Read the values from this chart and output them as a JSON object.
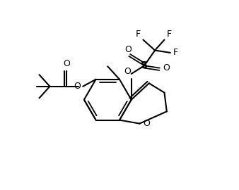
{
  "background": "#ffffff",
  "line_color": "#000000",
  "line_width": 1.5,
  "font_size": 9,
  "figsize": [
    3.38,
    2.7
  ],
  "dpi": 100,
  "xlim": [
    0,
    10
  ],
  "ylim": [
    0,
    8
  ]
}
